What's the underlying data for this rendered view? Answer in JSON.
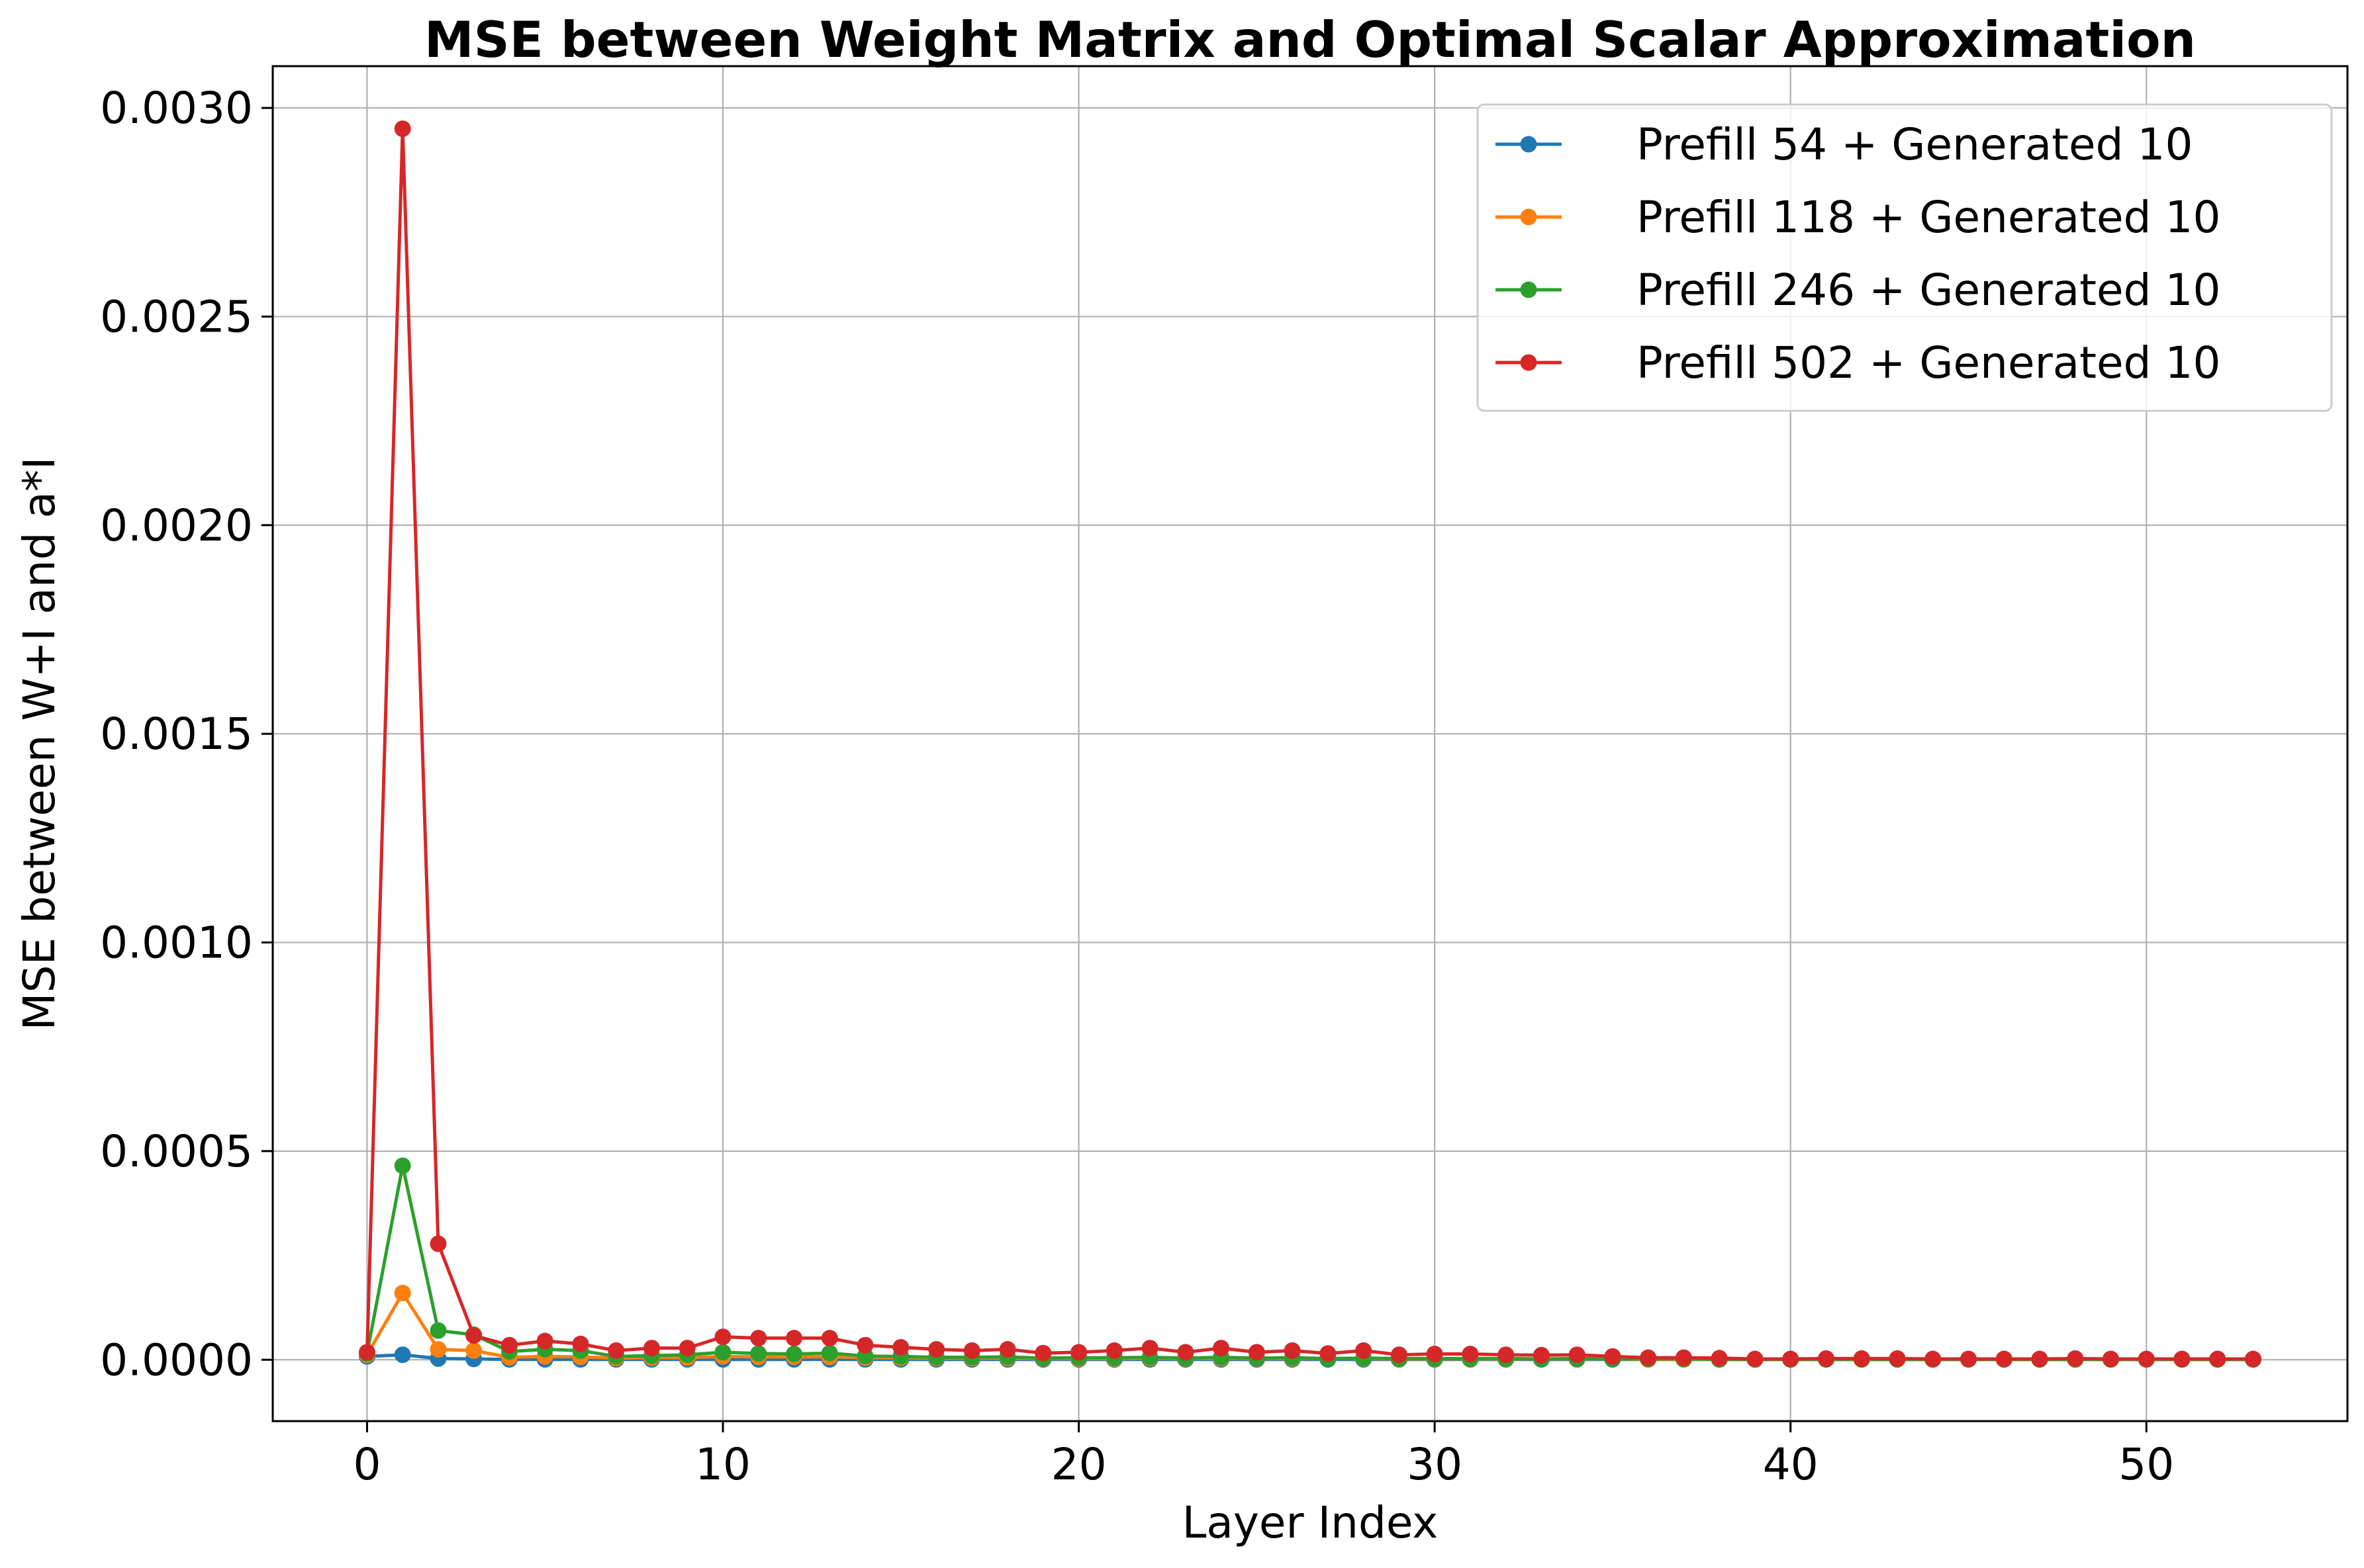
{
  "chart_data": {
    "type": "line",
    "title": "MSE between Weight Matrix and Optimal Scalar Approximation",
    "xlabel": "Layer Index",
    "ylabel": "MSE between W+I and a*I",
    "xlim": [
      -2.65,
      55.65
    ],
    "ylim": [
      -0.000147,
      0.0031
    ],
    "xticks": [
      0,
      10,
      20,
      30,
      40,
      50
    ],
    "xtick_labels": [
      "0",
      "10",
      "20",
      "30",
      "40",
      "50"
    ],
    "yticks": [
      0.0,
      0.0005,
      0.001,
      0.0015,
      0.002,
      0.0025,
      0.003
    ],
    "ytick_labels": [
      "0.0000",
      "0.0005",
      "0.0010",
      "0.0015",
      "0.0020",
      "0.0025",
      "0.0030"
    ],
    "grid": true,
    "legend_position": "top-right",
    "series": [
      {
        "name": "Prefill 54 + Generated 10",
        "color": "#1f77b4",
        "x": [
          0,
          1,
          2,
          3,
          4,
          5,
          6,
          7,
          8,
          9,
          10,
          11,
          12,
          13,
          14,
          15,
          16,
          17,
          18,
          19,
          20,
          21,
          22,
          23,
          24,
          25,
          26,
          27,
          28,
          29,
          30,
          31,
          32,
          33,
          34,
          35,
          36,
          37,
          38,
          39,
          40,
          41,
          42,
          43,
          44,
          45,
          46,
          47,
          48,
          49,
          50,
          51,
          52,
          53
        ],
        "y": [
          8e-06,
          1.2e-05,
          3e-06,
          2e-06,
          1e-06,
          1e-06,
          1e-06,
          1e-06,
          1e-06,
          1e-06,
          1e-06,
          1e-06,
          1e-06,
          1e-06,
          1e-06,
          1e-06,
          1e-06,
          1e-06,
          1e-06,
          1e-06,
          1e-06,
          1e-06,
          1e-06,
          1e-06,
          1e-06,
          1e-06,
          1e-06,
          1e-06,
          1e-06,
          1e-06,
          1e-06,
          1e-06,
          1e-06,
          1e-06,
          1e-06,
          1e-06,
          1e-06,
          1e-06,
          1e-06,
          1e-06,
          1e-06,
          1e-06,
          1e-06,
          1e-06,
          1e-06,
          1e-06,
          1e-06,
          1e-06,
          1e-06,
          1e-06,
          1e-06,
          1e-06,
          1e-06,
          1e-06
        ]
      },
      {
        "name": "Prefill 118 + Generated 10",
        "color": "#ff7f0e",
        "x": [
          0,
          1,
          2,
          3,
          4,
          5,
          6,
          7,
          8,
          9,
          10,
          11,
          12,
          13,
          14,
          15,
          16,
          17,
          18,
          19,
          20,
          21,
          22,
          23,
          24,
          25,
          26,
          27,
          28,
          29,
          30,
          31,
          32,
          33,
          34,
          35,
          36,
          37,
          38,
          39,
          40,
          41,
          42,
          43,
          44,
          45,
          46,
          47,
          48,
          49,
          50,
          51,
          52,
          53
        ],
        "y": [
          1.2e-05,
          0.00016,
          2.5e-05,
          2.2e-05,
          6e-06,
          8e-06,
          7e-06,
          4e-06,
          5e-06,
          5e-06,
          8e-06,
          7e-06,
          7e-06,
          7e-06,
          5e-06,
          5e-06,
          4e-06,
          4e-06,
          4e-06,
          3e-06,
          3e-06,
          3e-06,
          4e-06,
          3e-06,
          4e-06,
          3e-06,
          3e-06,
          3e-06,
          3e-06,
          2e-06,
          2e-06,
          2e-06,
          2e-06,
          2e-06,
          2e-06,
          2e-06,
          1e-06,
          1e-06,
          1e-06,
          1e-06,
          1e-06,
          1e-06,
          1e-06,
          1e-06,
          1e-06,
          1e-06,
          1e-06,
          1e-06,
          1e-06,
          1e-06,
          1e-06,
          1e-06,
          1e-06,
          1e-06
        ]
      },
      {
        "name": "Prefill 246 + Generated 10",
        "color": "#2ca02c",
        "x": [
          0,
          1,
          2,
          3,
          4,
          5,
          6,
          7,
          8,
          9,
          10,
          11,
          12,
          13,
          14,
          15,
          16,
          17,
          18,
          19,
          20,
          21,
          22,
          23,
          24,
          25,
          26,
          27,
          28,
          29,
          30,
          31,
          32,
          33,
          34,
          35,
          36,
          37,
          38,
          39,
          40,
          41,
          42,
          43,
          44,
          45,
          46,
          47,
          48,
          49,
          50,
          51,
          52,
          53
        ],
        "y": [
          1.5e-05,
          0.000465,
          7e-05,
          6e-05,
          2e-05,
          2.5e-05,
          2.2e-05,
          8e-06,
          1e-05,
          1.2e-05,
          1.8e-05,
          1.5e-05,
          1.4e-05,
          1.6e-05,
          9e-06,
          8e-06,
          6e-06,
          6e-06,
          7e-06,
          4e-06,
          5e-06,
          5e-06,
          6e-06,
          4e-06,
          6e-06,
          4e-06,
          5e-06,
          3e-06,
          4e-06,
          3e-06,
          3e-06,
          3e-06,
          3e-06,
          2e-06,
          3e-06,
          2e-06,
          2e-06,
          2e-06,
          1e-06,
          1e-06,
          1e-06,
          1e-06,
          1e-06,
          1e-06,
          1e-06,
          1e-06,
          1e-06,
          1e-06,
          1e-06,
          1e-06,
          1e-06,
          1e-06,
          1e-06,
          1e-06
        ]
      },
      {
        "name": "Prefill 502 + Generated 10",
        "color": "#d62728",
        "x": [
          0,
          1,
          2,
          3,
          4,
          5,
          6,
          7,
          8,
          9,
          10,
          11,
          12,
          13,
          14,
          15,
          16,
          17,
          18,
          19,
          20,
          21,
          22,
          23,
          24,
          25,
          26,
          27,
          28,
          29,
          30,
          31,
          32,
          33,
          34,
          35,
          36,
          37,
          38,
          39,
          40,
          41,
          42,
          43,
          44,
          45,
          46,
          47,
          48,
          49,
          50,
          51,
          52,
          53
        ],
        "y": [
          1.8e-05,
          0.00295,
          0.000278,
          5.8e-05,
          3.5e-05,
          4.5e-05,
          3.8e-05,
          2.2e-05,
          2.8e-05,
          2.8e-05,
          5.5e-05,
          5.2e-05,
          5.2e-05,
          5.2e-05,
          3.5e-05,
          3e-05,
          2.5e-05,
          2.2e-05,
          2.5e-05,
          1.6e-05,
          1.8e-05,
          2.2e-05,
          2.8e-05,
          1.8e-05,
          2.8e-05,
          1.8e-05,
          2.2e-05,
          1.5e-05,
          2.2e-05,
          1.2e-05,
          1.4e-05,
          1.4e-05,
          1.2e-05,
          1.1e-05,
          1.2e-05,
          8e-06,
          5e-06,
          5e-06,
          4e-06,
          2e-06,
          2e-06,
          3e-06,
          3e-06,
          3e-06,
          2e-06,
          2e-06,
          2e-06,
          2e-06,
          3e-06,
          2e-06,
          2e-06,
          2e-06,
          2e-06,
          2e-06
        ]
      }
    ]
  }
}
